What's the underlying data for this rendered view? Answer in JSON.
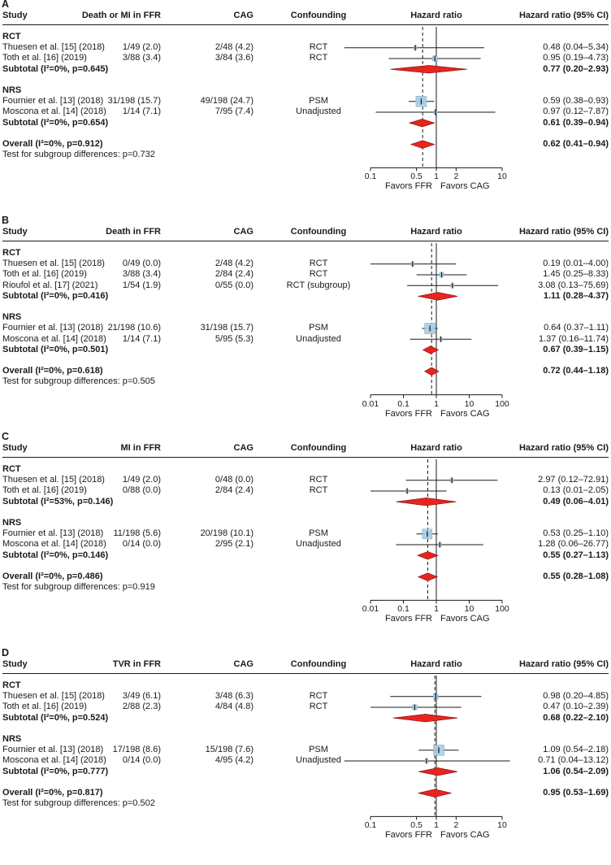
{
  "figure": {
    "kind": "forest-plot-meta-analysis",
    "colors": {
      "marker_blue": "#a9cce3",
      "marker_blue_stroke": "#85b4d4",
      "diamond_red": "#e8241f",
      "diamond_stroke": "#7a0b0b",
      "line_black": "#1a1a1a"
    }
  },
  "chart_data": [
    {
      "type": "forest",
      "label": "A",
      "columns": {
        "study": "Study",
        "events_ffr": "Death or MI in FFR",
        "events_cag": "CAG",
        "confounding": "Confounding",
        "plot": "Hazard ratio",
        "estimate": "Hazard ratio (95% CI)"
      },
      "axis": {
        "min": 0.1,
        "max": 10,
        "tick_values": [
          0.1,
          0.5,
          1,
          2,
          10
        ],
        "ticks": [
          "0.1",
          "0.5",
          "1",
          "2",
          "10"
        ],
        "favors_left": "Favors FFR",
        "favors_right": "Favors CAG"
      },
      "groups": [
        {
          "name": "RCT",
          "studies": [
            {
              "name": "Thuesen et al. [15] (2018)",
              "ffr": "1/49 (2.0)",
              "cag": "2/48 (4.2)",
              "confounding": "RCT",
              "hr": 0.48,
              "lo": 0.04,
              "hi": 5.34,
              "ci": "0.48 (0.04–5.34)",
              "size": 4
            },
            {
              "name": "Toth et al. [16] (2019)",
              "ffr": "3/88 (3.4)",
              "cag": "3/84 (3.6)",
              "confounding": "RCT",
              "hr": 0.95,
              "lo": 0.19,
              "hi": 4.73,
              "ci": "0.95 (0.19–4.73)",
              "size": 6
            }
          ],
          "subtotal": {
            "name": "Subtotal (I²=0%, p=0.645)",
            "hr": 0.77,
            "lo": 0.2,
            "hi": 2.93,
            "ci": "0.77 (0.20–2.93)"
          }
        },
        {
          "name": "NRS",
          "studies": [
            {
              "name": "Fournier et al. [13] (2018)",
              "ffr": "31/198 (15.7)",
              "cag": "49/198 (24.7)",
              "confounding": "PSM",
              "hr": 0.59,
              "lo": 0.38,
              "hi": 0.93,
              "ci": "0.59 (0.38–0.93)",
              "size": 13
            },
            {
              "name": "Moscona et al. [14] (2018)",
              "ffr": "1/14 (7.1)",
              "cag": "7/95 (7.4)",
              "confounding": "Unadjusted",
              "hr": 0.97,
              "lo": 0.12,
              "hi": 7.87,
              "ci": "0.97 (0.12–7.87)",
              "size": 4
            }
          ],
          "subtotal": {
            "name": "Subtotal (I²=0%, p=0.654)",
            "hr": 0.61,
            "lo": 0.39,
            "hi": 0.94,
            "ci": "0.61 (0.39–0.94)"
          }
        }
      ],
      "overall": {
        "name": "Overall (I²=0%, p=0.912)",
        "hr": 0.62,
        "lo": 0.41,
        "hi": 0.94,
        "ci": "0.62 (0.41–0.94)"
      },
      "subgroup_test": "Test for subgroup differences: p=0.732"
    },
    {
      "type": "forest",
      "label": "B",
      "columns": {
        "study": "Study",
        "events_ffr": "Death in FFR",
        "events_cag": "CAG",
        "confounding": "Confounding",
        "plot": "Hazard ratio",
        "estimate": "Hazard ratio (95% CI)"
      },
      "axis": {
        "min": 0.01,
        "max": 100,
        "tick_values": [
          0.01,
          0.1,
          1,
          10,
          100
        ],
        "ticks": [
          "0.01",
          "0.1",
          "1",
          "10",
          "100"
        ],
        "favors_left": "Favors FFR",
        "favors_right": "Favors CAG"
      },
      "groups": [
        {
          "name": "RCT",
          "studies": [
            {
              "name": "Thuesen et al. [15] (2018)",
              "ffr": "0/49 (0.0)",
              "cag": "2/48 (4.2)",
              "confounding": "RCT",
              "hr": 0.19,
              "lo": 0.01,
              "hi": 4.0,
              "ci": "0.19 (0.01–4.00)",
              "size": 4
            },
            {
              "name": "Toth et al. [16] (2019)",
              "ffr": "3/88 (3.4)",
              "cag": "2/84 (2.4)",
              "confounding": "RCT",
              "hr": 1.45,
              "lo": 0.25,
              "hi": 8.33,
              "ci": "1.45 (0.25–8.33)",
              "size": 5
            },
            {
              "name": "Rioufol et al. [17] (2021)",
              "ffr": "1/54 (1.9)",
              "cag": "0/55 (0.0)",
              "confounding": "RCT (subgroup)",
              "hr": 3.08,
              "lo": 0.13,
              "hi": 75.69,
              "ci": "3.08 (0.13–75.69)",
              "size": 4
            }
          ],
          "subtotal": {
            "name": "Subtotal (I²=0%, p=0.416)",
            "hr": 1.11,
            "lo": 0.28,
            "hi": 4.37,
            "ci": "1.11 (0.28–4.37)"
          }
        },
        {
          "name": "NRS",
          "studies": [
            {
              "name": "Fournier et al. [13] (2018)",
              "ffr": "21/198 (10.6)",
              "cag": "31/198 (15.7)",
              "confounding": "PSM",
              "hr": 0.64,
              "lo": 0.37,
              "hi": 1.11,
              "ci": "0.64 (0.37–1.11)",
              "size": 13
            },
            {
              "name": "Moscona et al. [14] (2018)",
              "ffr": "1/14 (7.1)",
              "cag": "5/95 (5.3)",
              "confounding": "Unadjusted",
              "hr": 1.37,
              "lo": 0.16,
              "hi": 11.74,
              "ci": "1.37 (0.16–11.74)",
              "size": 4
            }
          ],
          "subtotal": {
            "name": "Subtotal (I²=0%, p=0.501)",
            "hr": 0.67,
            "lo": 0.39,
            "hi": 1.15,
            "ci": "0.67 (0.39–1.15)"
          }
        }
      ],
      "overall": {
        "name": "Overall (I²=0%, p=0.618)",
        "hr": 0.72,
        "lo": 0.44,
        "hi": 1.18,
        "ci": "0.72 (0.44–1.18)"
      },
      "subgroup_test": "Test for subgroup differences: p=0.505"
    },
    {
      "type": "forest",
      "label": "C",
      "columns": {
        "study": "Study",
        "events_ffr": "MI in FFR",
        "events_cag": "CAG",
        "confounding": "Confounding",
        "plot": "Hazard ratio",
        "estimate": "Hazard ratio (95% CI)"
      },
      "axis": {
        "min": 0.01,
        "max": 100,
        "tick_values": [
          0.01,
          0.1,
          1,
          10,
          100
        ],
        "ticks": [
          "0.01",
          "0.1",
          "1",
          "10",
          "100"
        ],
        "favors_left": "Favors FFR",
        "favors_right": "Favors CAG"
      },
      "groups": [
        {
          "name": "RCT",
          "studies": [
            {
              "name": "Thuesen et al. [15] (2018)",
              "ffr": "1/49 (2.0)",
              "cag": "0/48 (0.0)",
              "confounding": "RCT",
              "hr": 2.97,
              "lo": 0.12,
              "hi": 72.91,
              "ci": "2.97 (0.12–72.91)",
              "size": 4
            },
            {
              "name": "Toth et al. [16] (2019)",
              "ffr": "0/88 (0.0)",
              "cag": "2/84 (2.4)",
              "confounding": "RCT",
              "hr": 0.13,
              "lo": 0.01,
              "hi": 2.05,
              "ci": "0.13 (0.01–2.05)",
              "size": 4
            }
          ],
          "subtotal": {
            "name": "Subtotal (I²=53%, p=0.146)",
            "hr": 0.49,
            "lo": 0.06,
            "hi": 4.01,
            "ci": "0.49 (0.06–4.01)"
          }
        },
        {
          "name": "NRS",
          "studies": [
            {
              "name": "Fournier et al. [13] (2018)",
              "ffr": "11/198 (5.6)",
              "cag": "20/198 (10.1)",
              "confounding": "PSM",
              "hr": 0.53,
              "lo": 0.25,
              "hi": 1.1,
              "ci": "0.53 (0.25–1.10)",
              "size": 12
            },
            {
              "name": "Moscona et al. [14] (2018)",
              "ffr": "0/14 (0.0)",
              "cag": "2/95 (2.1)",
              "confounding": "Unadjusted",
              "hr": 1.28,
              "lo": 0.06,
              "hi": 26.77,
              "ci": "1.28 (0.06–26.77)",
              "size": 4
            }
          ],
          "subtotal": {
            "name": "Subtotal (I²=0%, p=0.146)",
            "hr": 0.55,
            "lo": 0.27,
            "hi": 1.13,
            "ci": "0.55 (0.27–1.13)"
          }
        }
      ],
      "overall": {
        "name": "Overall (I²=0%, p=0.486)",
        "hr": 0.55,
        "lo": 0.28,
        "hi": 1.08,
        "ci": "0.55 (0.28–1.08)"
      },
      "subgroup_test": "Test for subgroup differences: p=0.919"
    },
    {
      "type": "forest",
      "label": "D",
      "columns": {
        "study": "Study",
        "events_ffr": "TVR in FFR",
        "events_cag": "CAG",
        "confounding": "Confounding",
        "plot": "Hazard ratio",
        "estimate": "Hazard ratio (95% CI)"
      },
      "axis": {
        "min": 0.1,
        "max": 10,
        "tick_values": [
          0.1,
          0.5,
          1,
          2,
          10
        ],
        "ticks": [
          "0.1",
          "0.5",
          "1",
          "2",
          "10"
        ],
        "favors_left": "Favors FFR",
        "favors_right": "Favors CAG"
      },
      "groups": [
        {
          "name": "RCT",
          "studies": [
            {
              "name": "Thuesen et al. [15] (2018)",
              "ffr": "3/49 (6.1)",
              "cag": "3/48 (6.3)",
              "confounding": "RCT",
              "hr": 0.98,
              "lo": 0.2,
              "hi": 4.85,
              "ci": "0.98 (0.20–4.85)",
              "size": 6
            },
            {
              "name": "Toth et al. [16] (2019)",
              "ffr": "2/88 (2.3)",
              "cag": "4/84 (4.8)",
              "confounding": "RCT",
              "hr": 0.47,
              "lo": 0.1,
              "hi": 2.39,
              "ci": "0.47 (0.10–2.39)",
              "size": 6
            }
          ],
          "subtotal": {
            "name": "Subtotal (I²=0%, p=0.524)",
            "hr": 0.68,
            "lo": 0.22,
            "hi": 2.1,
            "ci": "0.68 (0.22–2.10)"
          }
        },
        {
          "name": "NRS",
          "studies": [
            {
              "name": "Fournier et al. [13] (2018)",
              "ffr": "17/198 (8.6)",
              "cag": "15/198 (7.6)",
              "confounding": "PSM",
              "hr": 1.09,
              "lo": 0.54,
              "hi": 2.18,
              "ci": "1.09 (0.54–2.18)",
              "size": 13
            },
            {
              "name": "Moscona et al. [14] (2018)",
              "ffr": "0/14 (0.0)",
              "cag": "4/95 (4.2)",
              "confounding": "Unadjusted",
              "hr": 0.71,
              "lo": 0.04,
              "hi": 13.12,
              "ci": "0.71 (0.04–13.12)",
              "size": 4
            }
          ],
          "subtotal": {
            "name": "Subtotal (I²=0%, p=0.777)",
            "hr": 1.06,
            "lo": 0.54,
            "hi": 2.09,
            "ci": "1.06 (0.54–2.09)"
          }
        }
      ],
      "overall": {
        "name": "Overall (I²=0%, p=0.817)",
        "hr": 0.95,
        "lo": 0.53,
        "hi": 1.69,
        "ci": "0.95 (0.53–1.69)"
      },
      "subgroup_test": "Test for subgroup differences: p=0.502"
    }
  ]
}
